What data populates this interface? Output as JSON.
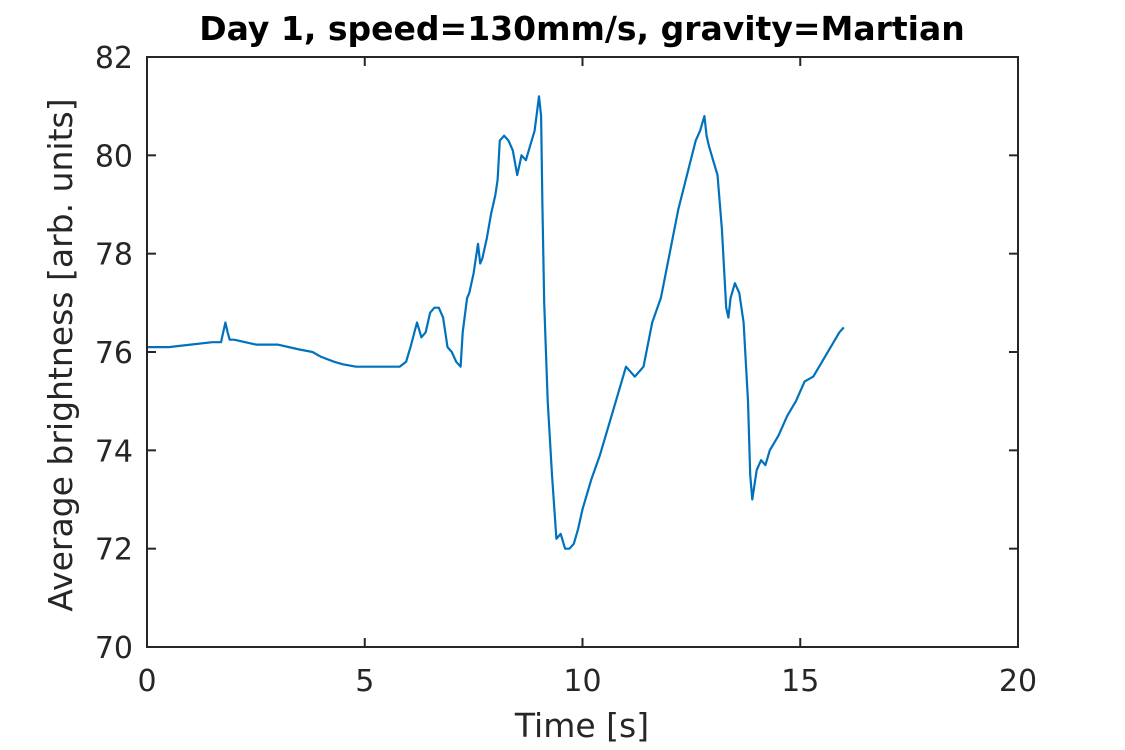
{
  "chart_data": {
    "type": "line",
    "title": "Day 1, speed=130mm/s, gravity=Martian",
    "xlabel": "Time [s]",
    "ylabel": "Average brightness [arb. units]",
    "xlim": [
      0,
      20
    ],
    "ylim": [
      70,
      82
    ],
    "xticks": [
      0,
      5,
      10,
      15,
      20
    ],
    "yticks": [
      70,
      72,
      74,
      76,
      78,
      80,
      82
    ],
    "xtick_labels": [
      "0",
      "5",
      "10",
      "15",
      "20"
    ],
    "ytick_labels": [
      "70",
      "72",
      "74",
      "76",
      "78",
      "80",
      "82"
    ],
    "grid": false,
    "line_color": "#0072BD",
    "series": [
      {
        "x": [
          0.0,
          0.5,
          1.0,
          1.5,
          1.7,
          1.8,
          1.85,
          1.9,
          2.0,
          2.5,
          3.0,
          3.5,
          3.8,
          4.0,
          4.3,
          4.5,
          4.8,
          5.0,
          5.3,
          5.5,
          5.8,
          5.95,
          6.05,
          6.2,
          6.3,
          6.4,
          6.5,
          6.6,
          6.7,
          6.8,
          6.9,
          7.0,
          7.1,
          7.2,
          7.25,
          7.35,
          7.4,
          7.5,
          7.6,
          7.65,
          7.7,
          7.8,
          7.9,
          8.0,
          8.05,
          8.1,
          8.2,
          8.3,
          8.4,
          8.5,
          8.55,
          8.6,
          8.7,
          8.8,
          8.9,
          9.0,
          9.05,
          9.08,
          9.12,
          9.2,
          9.3,
          9.4,
          9.5,
          9.6,
          9.7,
          9.8,
          9.9,
          10.0,
          10.2,
          10.4,
          10.6,
          10.8,
          11.0,
          11.2,
          11.4,
          11.6,
          11.8,
          12.0,
          12.2,
          12.4,
          12.6,
          12.7,
          12.8,
          12.85,
          12.9,
          13.0,
          13.1,
          13.2,
          13.3,
          13.35,
          13.4,
          13.5,
          13.6,
          13.7,
          13.8,
          13.85,
          13.9,
          14.0,
          14.1,
          14.2,
          14.3,
          14.5,
          14.7,
          14.9,
          15.1,
          15.3,
          15.5,
          15.7,
          15.9,
          16.0
        ],
        "y": [
          76.1,
          76.1,
          76.15,
          76.2,
          76.2,
          76.6,
          76.4,
          76.25,
          76.25,
          76.15,
          76.15,
          76.05,
          76.0,
          75.9,
          75.8,
          75.75,
          75.7,
          75.7,
          75.7,
          75.7,
          75.7,
          75.8,
          76.1,
          76.6,
          76.3,
          76.4,
          76.8,
          76.9,
          76.9,
          76.7,
          76.1,
          76.0,
          75.8,
          75.7,
          76.4,
          77.1,
          77.2,
          77.6,
          78.2,
          77.8,
          77.9,
          78.3,
          78.8,
          79.2,
          79.5,
          80.3,
          80.4,
          80.3,
          80.1,
          79.6,
          79.8,
          80.0,
          79.9,
          80.2,
          80.5,
          81.2,
          80.8,
          79.0,
          77.0,
          75.0,
          73.5,
          72.2,
          72.3,
          72.0,
          72.0,
          72.1,
          72.4,
          72.8,
          73.4,
          73.9,
          74.5,
          75.1,
          75.7,
          75.5,
          75.7,
          76.6,
          77.1,
          78.0,
          78.9,
          79.6,
          80.3,
          80.5,
          80.8,
          80.4,
          80.2,
          79.9,
          79.6,
          78.5,
          76.9,
          76.7,
          77.1,
          77.4,
          77.2,
          76.6,
          75.0,
          73.5,
          73.0,
          73.6,
          73.8,
          73.7,
          74.0,
          74.3,
          74.7,
          75.0,
          75.4,
          75.5,
          75.8,
          76.1,
          76.4,
          76.5
        ]
      }
    ]
  }
}
